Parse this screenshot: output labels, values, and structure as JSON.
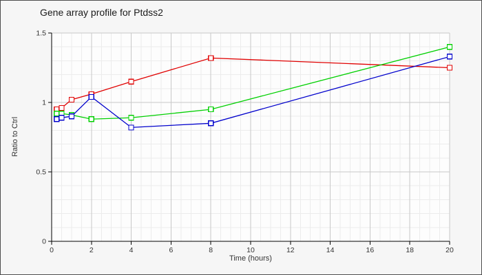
{
  "chart_data": {
    "type": "line",
    "title": "Gene array profile for Ptdss2",
    "xlabel": "Time (hours)",
    "ylabel": "Ratio to Ctrl",
    "x": [
      0.25,
      0.5,
      1,
      2,
      4,
      8,
      20
    ],
    "series": [
      {
        "name": "series-red",
        "color": "#e00000",
        "values": [
          0.95,
          0.96,
          1.02,
          1.06,
          1.15,
          1.32,
          1.25
        ]
      },
      {
        "name": "series-green",
        "color": "#00d000",
        "values": [
          0.92,
          0.92,
          0.91,
          0.88,
          0.89,
          0.95,
          1.4
        ]
      },
      {
        "name": "series-blue",
        "color": "#0000cc",
        "values": [
          0.88,
          0.89,
          0.9,
          1.04,
          0.82,
          0.85,
          1.33
        ]
      }
    ],
    "xlim": [
      0,
      20
    ],
    "ylim": [
      0,
      1.5
    ],
    "x_ticks": [
      {
        "value": 0,
        "label": "0"
      },
      {
        "value": 2,
        "label": "2"
      },
      {
        "value": 4,
        "label": "4"
      },
      {
        "value": 6,
        "label": "6"
      },
      {
        "value": 8,
        "label": "8"
      },
      {
        "value": 10,
        "label": "10"
      },
      {
        "value": 12,
        "label": "12"
      },
      {
        "value": 14,
        "label": "14"
      },
      {
        "value": 16,
        "label": "16"
      },
      {
        "value": 18,
        "label": "18"
      },
      {
        "value": 20,
        "label": "20"
      }
    ],
    "y_ticks": [
      {
        "value": 0,
        "label": "0"
      },
      {
        "value": 0.5,
        "label": "0.5"
      },
      {
        "value": 1,
        "label": "1"
      },
      {
        "value": 1.5,
        "label": "1.5"
      }
    ],
    "x_minor_step": 0.5,
    "y_minor_step": 0.1,
    "grid": true,
    "legend": "none",
    "marker": "open-square",
    "colors": {
      "panel_bg": "#f6f6f6",
      "plot_bg": "#fdfdfd",
      "grid_minor": "#ececec",
      "grid_major": "#c8c8c8",
      "axis": "#000000",
      "tick_text": "#333333",
      "title_text": "#1a1a1a",
      "marker_fill": "#ffffff"
    }
  }
}
